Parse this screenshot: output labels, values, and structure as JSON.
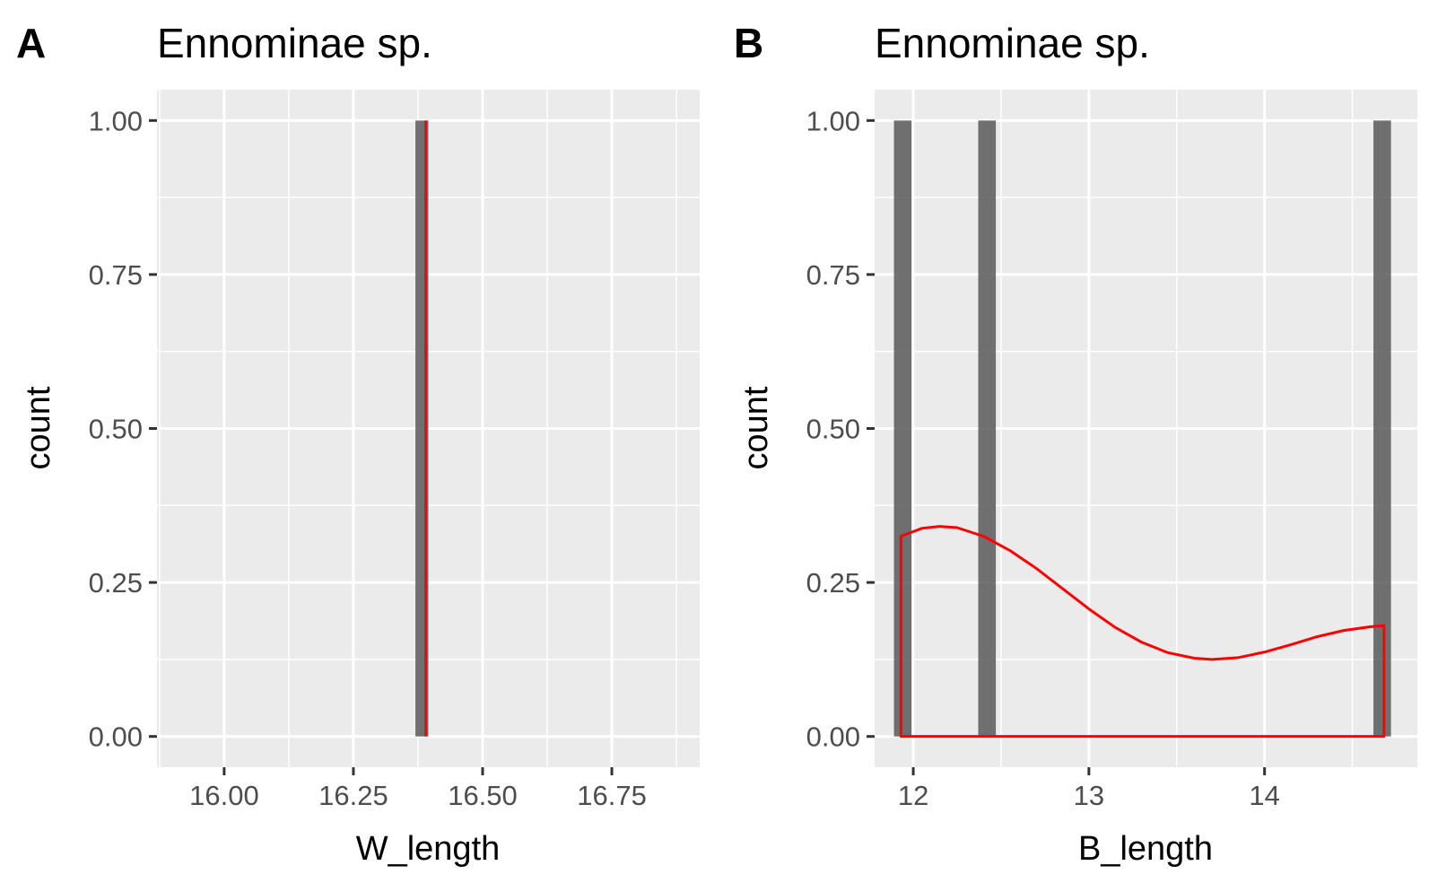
{
  "chart_data": [
    {
      "type": "bar",
      "tag": "A",
      "title": "Ennominae sp.",
      "xlabel": "W_length",
      "ylabel": "count",
      "xlim": [
        15.87,
        16.92
      ],
      "ylim": [
        -0.05,
        1.05
      ],
      "xticks": [
        16.0,
        16.25,
        16.5,
        16.75
      ],
      "xtick_labels": [
        "16.00",
        "16.25",
        "16.50",
        "16.75"
      ],
      "yticks": [
        0,
        0.25,
        0.5,
        0.75,
        1.0
      ],
      "ytick_labels": [
        "0.00",
        "0.25",
        "0.50",
        "0.75",
        "1.00"
      ],
      "bars": [
        {
          "xmin": 16.37,
          "xmax": 16.395,
          "count": 1
        }
      ],
      "density_line": {
        "x": [
          16.39,
          16.39
        ],
        "y": [
          0,
          1
        ]
      },
      "grid": true,
      "colors": {
        "panel": "#ebebeb",
        "grid": "#ffffff",
        "bar": "#595959",
        "density": "#ff0000"
      }
    },
    {
      "type": "bar",
      "tag": "B",
      "title": "Ennominae sp.",
      "xlabel": "B_length",
      "ylabel": "count",
      "xlim": [
        11.78,
        14.87
      ],
      "ylim": [
        -0.05,
        1.05
      ],
      "xticks": [
        12,
        13,
        14
      ],
      "xtick_labels": [
        "12",
        "13",
        "14"
      ],
      "yticks": [
        0,
        0.25,
        0.5,
        0.75,
        1.0
      ],
      "ytick_labels": [
        "0.00",
        "0.25",
        "0.50",
        "0.75",
        "1.00"
      ],
      "bars": [
        {
          "xmin": 11.89,
          "xmax": 11.99,
          "count": 1
        },
        {
          "xmin": 12.37,
          "xmax": 12.47,
          "count": 1
        },
        {
          "xmin": 14.62,
          "xmax": 14.72,
          "count": 1
        }
      ],
      "density_curve": {
        "x": [
          11.93,
          12.05,
          12.15,
          12.25,
          12.4,
          12.55,
          12.7,
          12.85,
          13.0,
          13.15,
          13.3,
          13.45,
          13.6,
          13.7,
          13.85,
          14.0,
          14.15,
          14.3,
          14.45,
          14.6,
          14.68
        ],
        "y": [
          0.325,
          0.338,
          0.341,
          0.339,
          0.325,
          0.302,
          0.273,
          0.24,
          0.207,
          0.177,
          0.153,
          0.136,
          0.127,
          0.125,
          0.128,
          0.137,
          0.149,
          0.162,
          0.172,
          0.178,
          0.18
        ]
      },
      "grid": true,
      "colors": {
        "panel": "#ebebeb",
        "grid": "#ffffff",
        "bar": "#595959",
        "density": "#ff0000"
      }
    }
  ]
}
